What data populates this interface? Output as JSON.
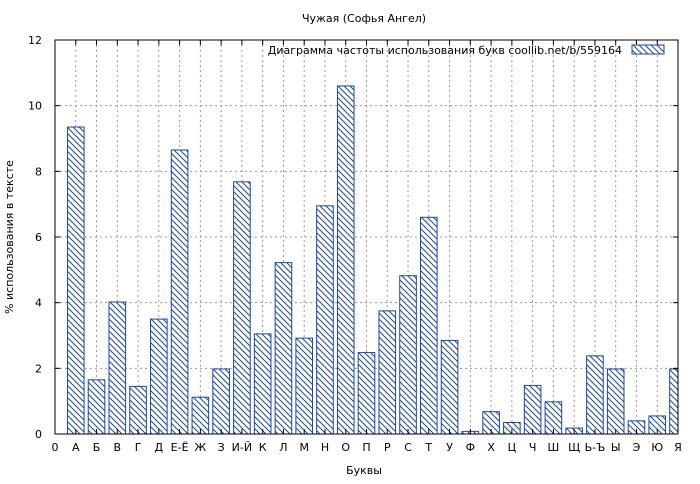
{
  "chart_data": {
    "type": "bar",
    "title": "Чужая (Софья Ангел)",
    "xlabel": "Буквы",
    "ylabel": "% использования в тексте",
    "ylim": [
      0,
      12
    ],
    "yticks": [
      0,
      2,
      4,
      6,
      8,
      10,
      12
    ],
    "x_tick_labels": [
      "0",
      "А",
      "Б",
      "В",
      "Г",
      "Д",
      "Е-Ё",
      "Ж",
      "З",
      "И-Й",
      "К",
      "Л",
      "М",
      "Н",
      "О",
      "П",
      "Р",
      "С",
      "Т",
      "У",
      "Ф",
      "Х",
      "Ц",
      "Ч",
      "Ш",
      "Щ",
      "Ь-Ъ",
      "Ы",
      "Э",
      "Ю",
      "Я"
    ],
    "categories": [
      "А",
      "Б",
      "В",
      "Г",
      "Д",
      "Е-Ё",
      "Ж",
      "З",
      "И-Й",
      "К",
      "Л",
      "М",
      "Н",
      "О",
      "П",
      "Р",
      "С",
      "Т",
      "У",
      "Ф",
      "Х",
      "Ц",
      "Ч",
      "Ш",
      "Щ",
      "Ь-Ъ",
      "Ы",
      "Э",
      "Ю",
      "Я"
    ],
    "series": [
      {
        "name": "Диаграмма частоты использования букв  coollib.net/b/559164",
        "values": [
          9.35,
          1.65,
          4.02,
          1.45,
          3.5,
          8.65,
          1.12,
          1.98,
          7.68,
          3.05,
          5.22,
          2.92,
          6.95,
          10.6,
          2.48,
          3.75,
          4.82,
          6.6,
          2.85,
          0.08,
          0.68,
          0.35,
          1.48,
          0.98,
          0.18,
          2.38,
          1.98,
          0.4,
          0.55,
          1.98
        ]
      }
    ],
    "grid": true,
    "legend_position": "top-right",
    "bar_color": "#1a46a6",
    "hatch": "diagonal"
  }
}
